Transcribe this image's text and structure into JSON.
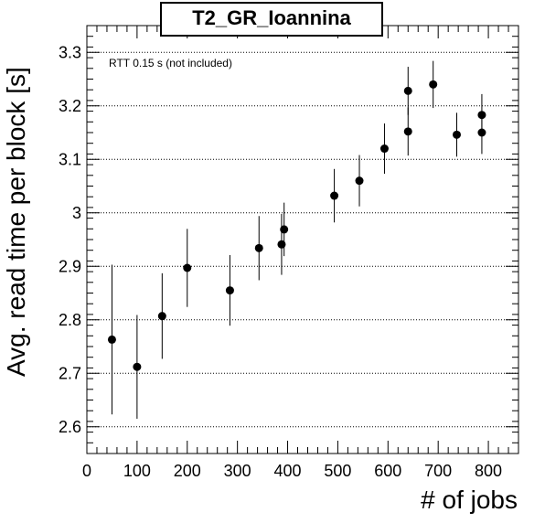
{
  "chart_data": {
    "type": "scatter",
    "title": "T2_GR_Ioannina",
    "xlabel": "# of jobs",
    "ylabel": "Avg. read time per block [s]",
    "annotation": "RTT 0.15 s (not included)",
    "xlim": [
      0,
      860
    ],
    "ylim": [
      2.55,
      3.35
    ],
    "x_ticks": [
      0,
      100,
      200,
      300,
      400,
      500,
      600,
      700,
      800
    ],
    "y_ticks": [
      2.6,
      2.7,
      2.8,
      2.9,
      3,
      3.1,
      3.2,
      3.3
    ],
    "x_tick_labels": [
      "0",
      "100",
      "200",
      "300",
      "400",
      "500",
      "600",
      "700",
      "800"
    ],
    "y_tick_labels": [
      "2.6",
      "2.7",
      "2.8",
      "2.9",
      "3",
      "3.1",
      "3.2",
      "3.3"
    ],
    "grid": "horizontal dotted",
    "points": [
      {
        "x": 50,
        "y": 2.763,
        "err": 0.14
      },
      {
        "x": 100,
        "y": 2.712,
        "err": 0.097
      },
      {
        "x": 150,
        "y": 2.807,
        "err": 0.08
      },
      {
        "x": 200,
        "y": 2.897,
        "err": 0.073
      },
      {
        "x": 285,
        "y": 2.855,
        "err": 0.066
      },
      {
        "x": 343,
        "y": 2.934,
        "err": 0.06
      },
      {
        "x": 388,
        "y": 2.941,
        "err": 0.057
      },
      {
        "x": 393,
        "y": 2.969,
        "err": 0.05
      },
      {
        "x": 493,
        "y": 3.032,
        "err": 0.05
      },
      {
        "x": 543,
        "y": 3.06,
        "err": 0.048
      },
      {
        "x": 593,
        "y": 3.12,
        "err": 0.047
      },
      {
        "x": 640,
        "y": 3.152,
        "err": 0.045
      },
      {
        "x": 640,
        "y": 3.228,
        "err": 0.045
      },
      {
        "x": 690,
        "y": 3.24,
        "err": 0.044
      },
      {
        "x": 737,
        "y": 3.146,
        "err": 0.041
      },
      {
        "x": 787,
        "y": 3.15,
        "err": 0.04
      },
      {
        "x": 787,
        "y": 3.183,
        "err": 0.039
      }
    ]
  }
}
